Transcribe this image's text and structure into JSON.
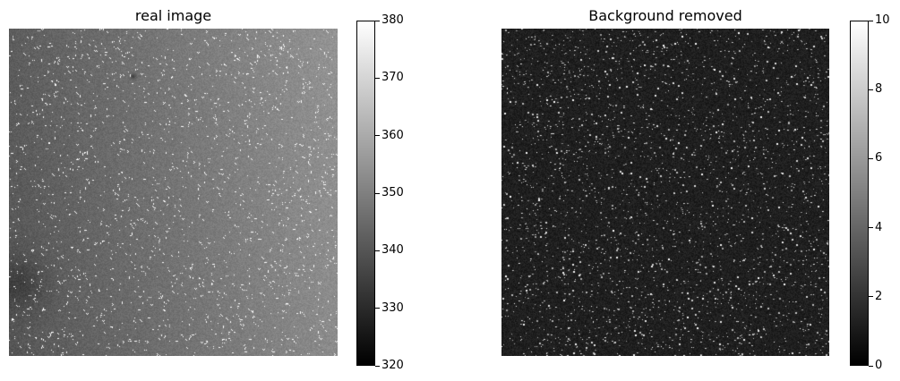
{
  "panels": [
    {
      "title": "real image",
      "colorbar": {
        "min": 320,
        "max": 380,
        "ticks": [
          "320",
          "330",
          "340",
          "350",
          "360",
          "370",
          "380"
        ],
        "colormap": "gray"
      }
    },
    {
      "title": "Background removed",
      "colorbar": {
        "min": 0,
        "max": 10,
        "ticks": [
          "0",
          "2",
          "4",
          "6",
          "8",
          "10"
        ],
        "colormap": "gray"
      }
    }
  ]
}
